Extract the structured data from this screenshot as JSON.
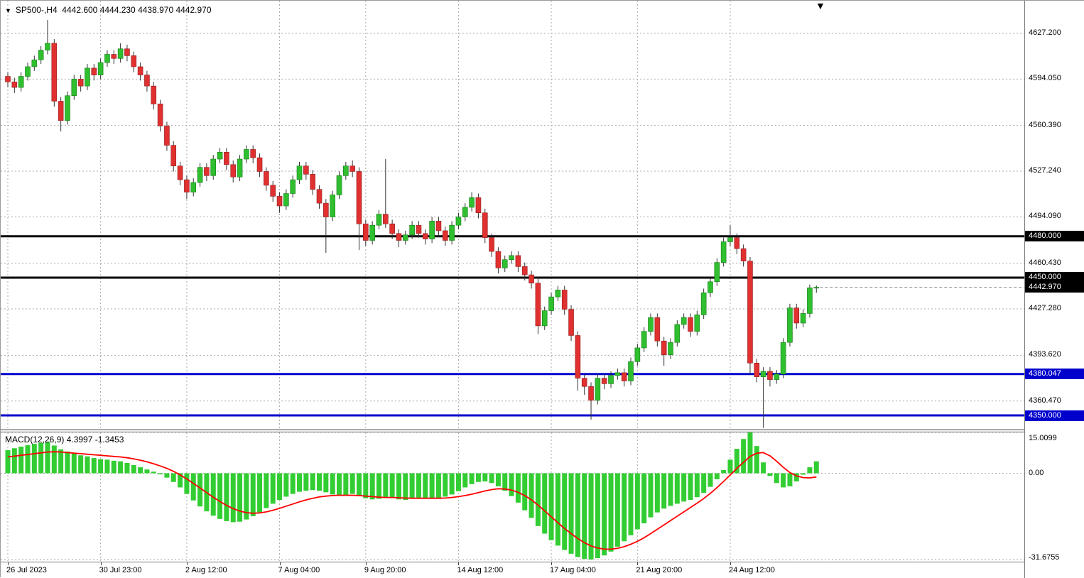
{
  "header": {
    "symbol_period": "SP500-,H4",
    "ohlc": "4442.600 4444.230 4438.970 4442.970"
  },
  "macd_header": {
    "label": "MACD(12,26,9) 4.3997 -1.3453"
  },
  "colors": {
    "bull": "#2FBF2F",
    "bull_border": "#157a15",
    "bear": "#E03030",
    "bear_border": "#8f1f1f",
    "wick": "#333333",
    "macd_hist": "#32CD32",
    "macd_signal": "#FF0000",
    "grid": "#ABABAB",
    "level_black": "#000000",
    "level_blue": "#0000CD"
  },
  "chart_data": [
    {
      "type": "candlestick",
      "symbol": "SP500-",
      "timeframe": "H4",
      "last_ohlc": {
        "open": 4442.6,
        "high": 4444.23,
        "low": 4438.97,
        "close": 4442.97
      },
      "current_price": 4442.97,
      "y_ticks": [
        4627.2,
        4594.05,
        4560.39,
        4527.24,
        4494.09,
        4460.43,
        4427.28,
        4393.62,
        4360.47
      ],
      "x_labels": [
        {
          "text": "26 Jul 2023",
          "index": 0
        },
        {
          "text": "30 Jul 23:00",
          "index": 14
        },
        {
          "text": "2 Aug 12:00",
          "index": 27
        },
        {
          "text": "7 Aug 04:00",
          "index": 41
        },
        {
          "text": "9 Aug 20:00",
          "index": 54
        },
        {
          "text": "14 Aug 12:00",
          "index": 68
        },
        {
          "text": "17 Aug 04:00",
          "index": 82
        },
        {
          "text": "21 Aug 20:00",
          "index": 95
        },
        {
          "text": "24 Aug 12:00",
          "index": 109
        }
      ],
      "hlines": [
        {
          "price": 4480.0,
          "color": "#000000",
          "width": 3
        },
        {
          "price": 4450.0,
          "color": "#000000",
          "width": 3
        },
        {
          "price": 4380.047,
          "color": "#0000CD",
          "width": 3
        },
        {
          "price": 4350.0,
          "color": "#0000CD",
          "width": 3
        }
      ],
      "price_tags": [
        {
          "label": "4480.000",
          "price": 4480.0,
          "bg": "#000000"
        },
        {
          "label": "4450.000",
          "price": 4450.0,
          "bg": "#000000"
        },
        {
          "label": "4442.970",
          "price": 4442.97,
          "bg": "#000000"
        },
        {
          "label": "4380.047",
          "price": 4380.047,
          "bg": "#0000CD"
        },
        {
          "label": "4350.000",
          "price": 4350.0,
          "bg": "#0000CD"
        }
      ],
      "candles": [
        [
          4596,
          4599,
          4588,
          4592
        ],
        [
          4592,
          4595,
          4584,
          4588
        ],
        [
          4588,
          4599,
          4585,
          4596
        ],
        [
          4596,
          4606,
          4593,
          4603
        ],
        [
          4603,
          4611,
          4600,
          4608
        ],
        [
          4608,
          4618,
          4605,
          4615
        ],
        [
          4615,
          4637,
          4612,
          4620
        ],
        [
          4620,
          4623,
          4574,
          4578
        ],
        [
          4578,
          4581,
          4556,
          4564
        ],
        [
          4564,
          4585,
          4561,
          4582
        ],
        [
          4582,
          4597,
          4579,
          4594
        ],
        [
          4594,
          4597,
          4585,
          4589
        ],
        [
          4589,
          4605,
          4586,
          4602
        ],
        [
          4602,
          4605,
          4593,
          4597
        ],
        [
          4597,
          4609,
          4594,
          4606
        ],
        [
          4606,
          4615,
          4603,
          4612
        ],
        [
          4612,
          4615,
          4605,
          4609
        ],
        [
          4609,
          4620,
          4606,
          4616
        ],
        [
          4616,
          4619,
          4607,
          4611
        ],
        [
          4611,
          4614,
          4599,
          4603
        ],
        [
          4603,
          4606,
          4593,
          4597
        ],
        [
          4597,
          4600,
          4585,
          4589
        ],
        [
          4589,
          4592,
          4572,
          4576
        ],
        [
          4576,
          4579,
          4556,
          4560
        ],
        [
          4560,
          4563,
          4542,
          4546
        ],
        [
          4546,
          4549,
          4527,
          4531
        ],
        [
          4531,
          4534,
          4517,
          4521
        ],
        [
          4521,
          4524,
          4507,
          4512
        ],
        [
          4512,
          4522,
          4509,
          4519
        ],
        [
          4519,
          4533,
          4516,
          4530
        ],
        [
          4530,
          4533,
          4520,
          4524
        ],
        [
          4524,
          4539,
          4521,
          4536
        ],
        [
          4536,
          4544,
          4533,
          4541
        ],
        [
          4541,
          4544,
          4528,
          4532
        ],
        [
          4532,
          4535,
          4519,
          4523
        ],
        [
          4523,
          4539,
          4520,
          4536
        ],
        [
          4536,
          4546,
          4533,
          4543
        ],
        [
          4543,
          4546,
          4533,
          4537
        ],
        [
          4537,
          4540,
          4523,
          4527
        ],
        [
          4527,
          4530,
          4513,
          4517
        ],
        [
          4517,
          4520,
          4505,
          4509
        ],
        [
          4509,
          4512,
          4497,
          4502
        ],
        [
          4502,
          4514,
          4499,
          4511
        ],
        [
          4511,
          4524,
          4508,
          4521
        ],
        [
          4521,
          4534,
          4518,
          4531
        ],
        [
          4531,
          4534,
          4521,
          4525
        ],
        [
          4525,
          4528,
          4510,
          4514
        ],
        [
          4514,
          4517,
          4500,
          4504
        ],
        [
          4504,
          4507,
          4468,
          4494
        ],
        [
          4494,
          4513,
          4491,
          4510
        ],
        [
          4510,
          4527,
          4507,
          4524
        ],
        [
          4524,
          4534,
          4521,
          4531
        ],
        [
          4531,
          4535,
          4523,
          4527
        ],
        [
          4527,
          4530,
          4470,
          4489
        ],
        [
          4489,
          4492,
          4473,
          4477
        ],
        [
          4477,
          4491,
          4474,
          4488
        ],
        [
          4488,
          4499,
          4485,
          4496
        ],
        [
          4496,
          4536,
          4486,
          4489
        ],
        [
          4489,
          4492,
          4478,
          4482
        ],
        [
          4482,
          4485,
          4472,
          4477
        ],
        [
          4477,
          4484,
          4474,
          4481
        ],
        [
          4481,
          4491,
          4478,
          4488
        ],
        [
          4488,
          4491,
          4479,
          4482
        ],
        [
          4482,
          4485,
          4474,
          4478
        ],
        [
          4478,
          4494,
          4475,
          4491
        ],
        [
          4491,
          4494,
          4480,
          4484
        ],
        [
          4484,
          4487,
          4473,
          4477
        ],
        [
          4477,
          4491,
          4474,
          4488
        ],
        [
          4488,
          4497,
          4485,
          4494
        ],
        [
          4494,
          4504,
          4491,
          4501
        ],
        [
          4501,
          4512,
          4498,
          4508
        ],
        [
          4508,
          4511,
          4493,
          4497
        ],
        [
          4497,
          4500,
          4475,
          4479
        ],
        [
          4479,
          4482,
          4465,
          4469
        ],
        [
          4469,
          4472,
          4453,
          4457
        ],
        [
          4457,
          4466,
          4454,
          4463
        ],
        [
          4463,
          4469,
          4460,
          4466
        ],
        [
          4466,
          4469,
          4454,
          4458
        ],
        [
          4458,
          4461,
          4448,
          4452
        ],
        [
          4452,
          4455,
          4442,
          4446
        ],
        [
          4446,
          4449,
          4409,
          4415
        ],
        [
          4415,
          4429,
          4412,
          4426
        ],
        [
          4426,
          4439,
          4423,
          4436
        ],
        [
          4436,
          4444,
          4433,
          4441
        ],
        [
          4441,
          4444,
          4423,
          4427
        ],
        [
          4427,
          4430,
          4404,
          4408
        ],
        [
          4408,
          4411,
          4368,
          4377
        ],
        [
          4377,
          4380,
          4365,
          4371
        ],
        [
          4371,
          4374,
          4347,
          4361
        ],
        [
          4361,
          4380,
          4358,
          4377
        ],
        [
          4377,
          4380,
          4369,
          4373
        ],
        [
          4373,
          4382,
          4370,
          4379
        ],
        [
          4379,
          4384,
          4376,
          4381
        ],
        [
          4381,
          4384,
          4371,
          4375
        ],
        [
          4375,
          4392,
          4372,
          4389
        ],
        [
          4389,
          4402,
          4386,
          4399
        ],
        [
          4399,
          4414,
          4396,
          4411
        ],
        [
          4411,
          4424,
          4408,
          4421
        ],
        [
          4421,
          4424,
          4400,
          4404
        ],
        [
          4404,
          4407,
          4386,
          4394
        ],
        [
          4394,
          4406,
          4391,
          4403
        ],
        [
          4403,
          4419,
          4400,
          4416
        ],
        [
          4416,
          4424,
          4413,
          4421
        ],
        [
          4421,
          4424,
          4407,
          4411
        ],
        [
          4411,
          4426,
          4408,
          4423
        ],
        [
          4423,
          4442,
          4420,
          4439
        ],
        [
          4439,
          4450,
          4436,
          4447
        ],
        [
          4447,
          4464,
          4444,
          4461
        ],
        [
          4461,
          4479,
          4458,
          4476
        ],
        [
          4476,
          4488,
          4473,
          4479
        ],
        [
          4479,
          4482,
          4467,
          4471
        ],
        [
          4471,
          4474,
          4458,
          4462
        ],
        [
          4462,
          4465,
          4380,
          4388
        ],
        [
          4388,
          4391,
          4374,
          4378
        ],
        [
          4378,
          4385,
          4341,
          4382
        ],
        [
          4382,
          4385,
          4371,
          4376
        ],
        [
          4376,
          4383,
          4373,
          4380
        ],
        [
          4380,
          4406,
          4377,
          4403
        ],
        [
          4403,
          4431,
          4400,
          4428
        ],
        [
          4428,
          4431,
          4413,
          4417
        ],
        [
          4417,
          4427,
          4414,
          4424
        ],
        [
          4424,
          4445,
          4421,
          4442.6
        ],
        [
          4442.6,
          4444.23,
          4438.97,
          4442.97
        ]
      ]
    },
    {
      "type": "bar+line",
      "name": "MACD",
      "params": "12,26,9",
      "main_value": 4.3997,
      "signal_value": -1.3453,
      "y_ticks": [
        {
          "v": 15.0099,
          "label": "15.0099"
        },
        {
          "v": 0,
          "label": "0.00"
        },
        {
          "v": -31.6755,
          "label": "-31.6755"
        }
      ],
      "hist": [
        8.5,
        9.2,
        9.8,
        10.3,
        10.8,
        11.2,
        11.6,
        10.2,
        8.8,
        8.0,
        7.4,
        6.6,
        6.2,
        5.6,
        5.2,
        5.0,
        4.6,
        4.4,
        3.8,
        3.0,
        2.2,
        1.4,
        0.6,
        -0.4,
        -1.6,
        -3.2,
        -5.2,
        -7.6,
        -10.0,
        -12.2,
        -14.0,
        -15.6,
        -16.8,
        -17.6,
        -18.0,
        -17.8,
        -17.0,
        -15.8,
        -14.4,
        -12.8,
        -11.2,
        -9.8,
        -8.6,
        -7.6,
        -6.8,
        -6.4,
        -6.2,
        -6.4,
        -7.0,
        -7.8,
        -8.2,
        -8.0,
        -7.6,
        -8.4,
        -9.2,
        -9.6,
        -9.4,
        -8.8,
        -9.0,
        -9.6,
        -9.8,
        -9.4,
        -9.0,
        -9.2,
        -9.4,
        -9.0,
        -8.6,
        -7.8,
        -6.6,
        -5.2,
        -4.0,
        -3.2,
        -3.0,
        -3.6,
        -4.8,
        -6.4,
        -8.4,
        -10.8,
        -13.6,
        -16.4,
        -19.4,
        -22.2,
        -24.6,
        -26.6,
        -28.2,
        -29.6,
        -30.8,
        -31.5,
        -31.7,
        -31.2,
        -30.2,
        -28.8,
        -27.0,
        -25.0,
        -22.8,
        -20.6,
        -18.4,
        -16.2,
        -14.4,
        -13.0,
        -12.0,
        -11.2,
        -10.4,
        -9.8,
        -8.8,
        -7.2,
        -5.0,
        -2.2,
        1.2,
        5.0,
        9.0,
        12.6,
        15.0,
        10.0,
        4.0,
        -1.0,
        -3.6,
        -5.2,
        -4.8,
        -3.0,
        -0.5,
        2.2,
        4.3997
      ],
      "signal": [
        6.0,
        6.3,
        6.6,
        6.9,
        7.2,
        7.5,
        7.8,
        7.9,
        7.8,
        7.6,
        7.4,
        7.2,
        7.0,
        6.8,
        6.6,
        6.4,
        6.2,
        6.0,
        5.7,
        5.3,
        4.8,
        4.2,
        3.5,
        2.7,
        1.8,
        0.7,
        -0.6,
        -2.1,
        -3.7,
        -5.4,
        -7.1,
        -8.8,
        -10.4,
        -11.8,
        -13.0,
        -13.9,
        -14.5,
        -14.7,
        -14.6,
        -14.2,
        -13.6,
        -12.9,
        -12.1,
        -11.3,
        -10.5,
        -9.8,
        -9.2,
        -8.7,
        -8.4,
        -8.2,
        -8.1,
        -8.1,
        -8.1,
        -8.2,
        -8.4,
        -8.6,
        -8.8,
        -8.9,
        -8.9,
        -9.0,
        -9.1,
        -9.2,
        -9.2,
        -9.2,
        -9.2,
        -9.2,
        -9.1,
        -8.9,
        -8.6,
        -8.2,
        -7.7,
        -7.1,
        -6.5,
        -6.0,
        -5.7,
        -5.8,
        -6.2,
        -7.0,
        -8.2,
        -9.8,
        -11.7,
        -13.8,
        -16.0,
        -18.2,
        -20.3,
        -22.2,
        -24.0,
        -25.5,
        -26.7,
        -27.5,
        -27.9,
        -27.9,
        -27.6,
        -27.0,
        -26.1,
        -25.0,
        -23.7,
        -22.2,
        -20.6,
        -19.0,
        -17.4,
        -15.8,
        -14.2,
        -12.6,
        -11.0,
        -9.3,
        -7.4,
        -5.3,
        -3.0,
        -0.6,
        1.8,
        4.0,
        6.2,
        7.4,
        7.6,
        6.4,
        4.4,
        2.2,
        0.3,
        -1.0,
        -1.6,
        -1.7,
        -1.3453
      ]
    }
  ]
}
